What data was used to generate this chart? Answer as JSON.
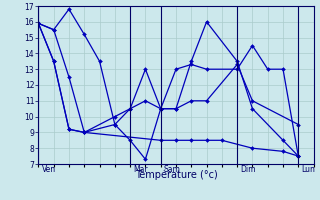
{
  "xlabel": "Température (°c)",
  "background_color": "#cce8ec",
  "line_color": "#0000bb",
  "grid_color": "#aacccc",
  "ylim": [
    7,
    17
  ],
  "yticks": [
    7,
    8,
    9,
    10,
    11,
    12,
    13,
    14,
    15,
    16,
    17
  ],
  "day_labels": [
    "Ven",
    "Mar",
    "Sam",
    "Dim",
    "Lun"
  ],
  "day_x": [
    0,
    6,
    8,
    13,
    17
  ],
  "vline_x": [
    0,
    6,
    8,
    13,
    17
  ],
  "xlim": [
    0,
    18
  ],
  "n_grid_x": 18,
  "lines": [
    {
      "x": [
        0,
        1,
        2,
        3,
        8,
        9,
        10,
        11,
        12,
        14,
        16,
        17
      ],
      "y": [
        15.9,
        13.5,
        9.2,
        9.0,
        8.5,
        8.5,
        8.5,
        8.5,
        8.5,
        8.0,
        7.8,
        7.5
      ]
    },
    {
      "x": [
        0,
        1,
        2,
        3,
        5,
        6,
        7,
        8,
        9,
        10,
        11,
        13,
        14,
        17
      ],
      "y": [
        15.9,
        13.5,
        9.2,
        9.0,
        10.0,
        10.5,
        11.0,
        10.5,
        10.5,
        11.0,
        11.0,
        13.3,
        11.0,
        9.5
      ]
    },
    {
      "x": [
        0,
        1,
        2,
        3,
        5,
        6,
        7,
        8,
        9,
        10,
        11,
        13,
        14,
        16,
        17
      ],
      "y": [
        15.9,
        15.5,
        12.5,
        9.0,
        9.5,
        8.5,
        7.3,
        10.5,
        10.5,
        13.5,
        16.0,
        13.5,
        10.5,
        8.5,
        7.5
      ]
    },
    {
      "x": [
        0,
        1,
        2,
        3,
        4,
        5,
        6,
        7,
        8,
        9,
        10,
        11,
        13,
        14,
        15,
        16,
        17
      ],
      "y": [
        15.9,
        15.5,
        16.8,
        15.2,
        13.5,
        9.5,
        10.5,
        13.0,
        10.5,
        13.0,
        13.3,
        13.0,
        13.0,
        14.5,
        13.0,
        13.0,
        7.5
      ]
    }
  ]
}
